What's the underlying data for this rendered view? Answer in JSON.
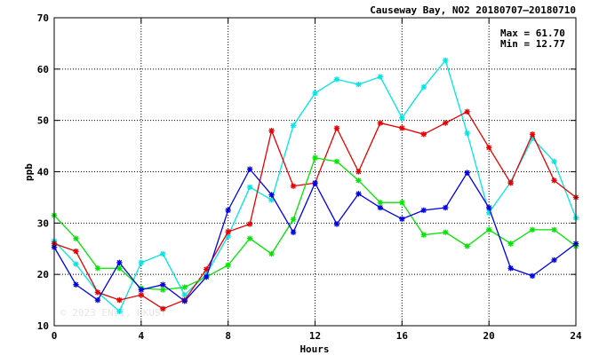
{
  "chart_data": {
    "type": "line",
    "title": "Causeway Bay, NO2 20180707–20180710",
    "xlabel": "Hours",
    "ylabel": "ppb",
    "xlim": [
      0,
      24
    ],
    "ylim": [
      10,
      70
    ],
    "xticks": [
      0,
      4,
      8,
      12,
      16,
      20,
      24
    ],
    "yticks": [
      10,
      20,
      30,
      40,
      50,
      60,
      70
    ],
    "grid": true,
    "stats": {
      "max_label": "Max = 61.70",
      "min_label": "Min = 12.77"
    },
    "watermark": "© 2023  ENVI, HKUST",
    "x": [
      0,
      1,
      2,
      3,
      4,
      5,
      6,
      7,
      8,
      9,
      10,
      11,
      12,
      13,
      14,
      15,
      16,
      17,
      18,
      19,
      20,
      21,
      22,
      23,
      24
    ],
    "series": [
      {
        "color": "#00e5e5",
        "values": [
          26.5,
          22.0,
          16.5,
          12.8,
          22.3,
          24.0,
          16.0,
          20.0,
          27.5,
          37.0,
          34.5,
          49.0,
          55.3,
          58.0,
          57.0,
          58.5,
          50.5,
          56.5,
          61.7,
          47.5,
          32.0,
          38.0,
          46.5,
          42.0,
          31.0
        ]
      },
      {
        "color": "#e60000",
        "values": [
          26.0,
          24.5,
          16.5,
          15.0,
          16.0,
          13.3,
          15.0,
          21.0,
          28.3,
          29.8,
          48.0,
          37.2,
          37.8,
          48.5,
          40.0,
          49.5,
          48.5,
          47.3,
          49.5,
          51.7,
          44.7,
          37.8,
          47.3,
          38.3,
          35.0
        ]
      },
      {
        "color": "#00e600",
        "values": [
          31.5,
          27.0,
          21.2,
          21.2,
          17.3,
          17.0,
          17.5,
          19.5,
          21.8,
          27.0,
          24.0,
          30.7,
          42.7,
          42.0,
          38.3,
          34.0,
          34.0,
          27.7,
          28.2,
          25.5,
          28.7,
          26.0,
          28.7,
          28.7,
          25.5
        ]
      },
      {
        "color": "#0000e6",
        "values": [
          25.3,
          18.0,
          15.0,
          22.3,
          17.0,
          18.0,
          14.8,
          19.5,
          32.5,
          40.5,
          35.5,
          28.2,
          37.8,
          29.8,
          35.7,
          33.0,
          30.8,
          32.5,
          33.0,
          39.8,
          33.0,
          21.2,
          19.7,
          22.8,
          26.0
        ]
      }
    ]
  }
}
